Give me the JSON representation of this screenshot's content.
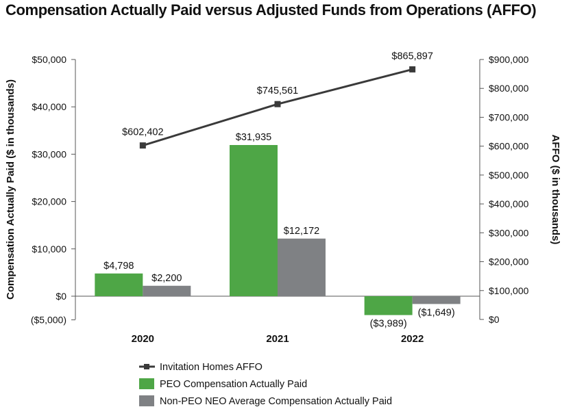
{
  "chart_data": {
    "type": "bar",
    "title": "Compensation Actually Paid versus Adjusted Funds from Operations (AFFO)",
    "categories": [
      "2020",
      "2021",
      "2022"
    ],
    "ylabel": "Compensation Actually Paid ($ in thousands)",
    "y2label": "AFFO ($ in thousands)",
    "ylim": [
      -5000,
      50000
    ],
    "y2lim": [
      0,
      900000
    ],
    "yticks": [
      "$50,000",
      "$40,000",
      "$30,000",
      "$20,000",
      "$10,000",
      "$0",
      "($5,000)"
    ],
    "y2ticks": [
      "$900,000",
      "$800,000",
      "$700,000",
      "$600,000",
      "$500,000",
      "$400,000",
      "$300,000",
      "$200,000",
      "$100,000",
      "$0"
    ],
    "series": [
      {
        "name": "PEO Compensation Actually Paid",
        "kind": "bar",
        "color": "#4ea646",
        "values": [
          4798,
          31935,
          -3989
        ],
        "labels": [
          "$4,798",
          "$31,935",
          "($3,989)"
        ]
      },
      {
        "name": "Non-PEO NEO Average Compensation Actually Paid",
        "kind": "bar",
        "color": "#7f8184",
        "values": [
          2200,
          12172,
          -1649
        ],
        "labels": [
          "$2,200",
          "$12,172",
          "($1,649)"
        ]
      },
      {
        "name": "Invitation Homes AFFO",
        "kind": "line",
        "axis": "right",
        "color": "#3a3a3a",
        "values": [
          602402,
          745561,
          865897
        ],
        "labels": [
          "$602,402",
          "$745,561",
          "$865,897"
        ]
      }
    ],
    "legend": [
      "Invitation Homes AFFO",
      "PEO Compensation Actually Paid",
      "Non-PEO NEO Average Compensation Actually Paid"
    ],
    "legend_position": "bottom"
  }
}
